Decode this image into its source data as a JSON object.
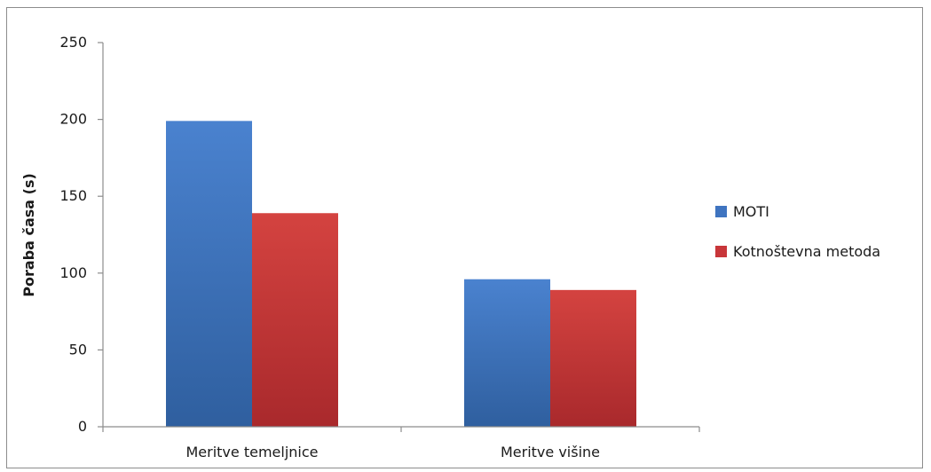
{
  "chart_data": {
    "type": "bar",
    "title": "",
    "xlabel": "",
    "ylabel": "Poraba časa (s)",
    "ylim": [
      0,
      250
    ],
    "yticks": [
      0,
      50,
      100,
      150,
      200,
      250
    ],
    "categories": [
      "Meritve temeljnice",
      "Meritve višine"
    ],
    "series": [
      {
        "name": "MOTI",
        "values": [
          199,
          96
        ],
        "color": "#3f74c0"
      },
      {
        "name": "Kotnoštevna metoda",
        "values": [
          139,
          89
        ],
        "color": "#c8363a"
      }
    ],
    "grid": false,
    "legend_position": "right"
  }
}
